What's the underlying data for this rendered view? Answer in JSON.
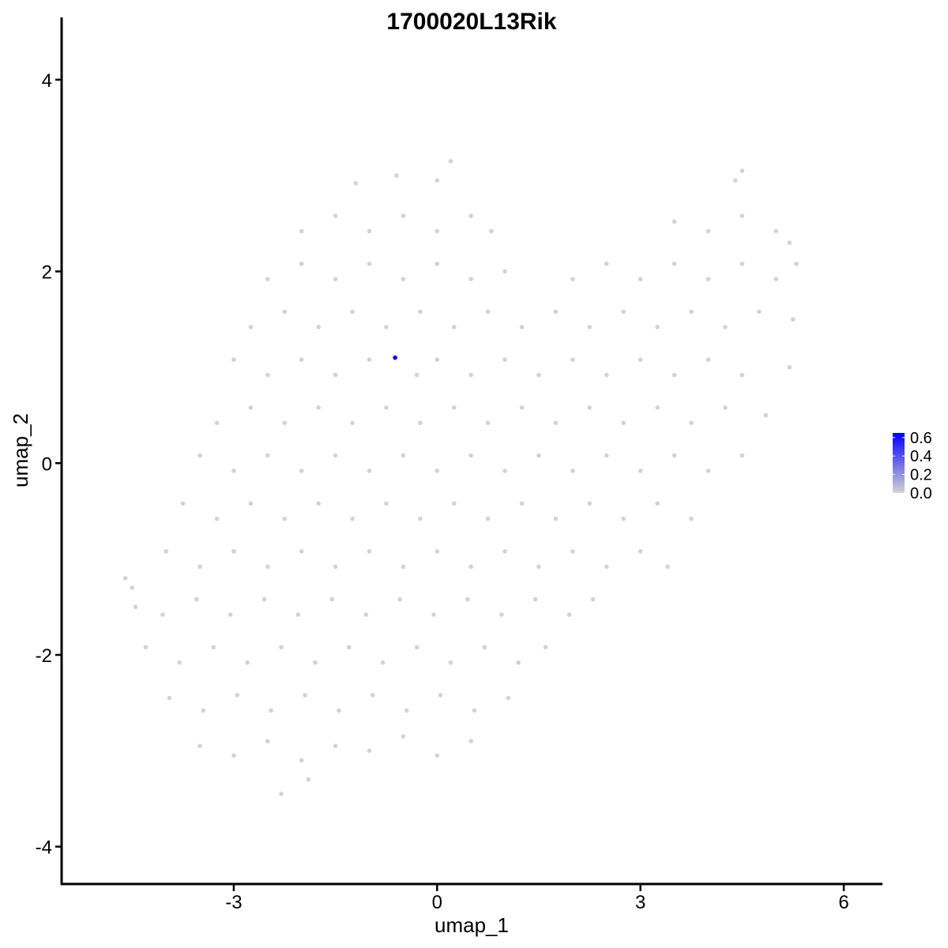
{
  "chart_data": {
    "type": "scatter",
    "title": "1700020L13Rik",
    "xlabel": "umap_1",
    "ylabel": "umap_2",
    "xlim": [
      -5.54,
      6.57
    ],
    "ylim": [
      -4.39,
      4.65
    ],
    "xticks": [
      -3,
      0,
      3,
      6
    ],
    "yticks": [
      -4,
      -2,
      0,
      2,
      4
    ],
    "xtick_labels": [
      "-3",
      "0",
      "3",
      "6"
    ],
    "ytick_labels": [
      "-4",
      "-2",
      "0",
      "2",
      "4"
    ],
    "grid": false,
    "colors": {
      "low": "#d3d3d3",
      "high": "#0000ff"
    },
    "legend": {
      "placement": "right",
      "type": "colorbar",
      "range": [
        0,
        0.65
      ],
      "tick_labels": [
        "0.0",
        "0.2",
        "0.4",
        "0.6"
      ],
      "ticks": [
        0,
        0.2,
        0.4,
        0.6
      ]
    },
    "expressing_points": [
      [
        -0.62,
        1.1,
        0.65
      ]
    ],
    "points": [
      [
        -4.6,
        -1.2
      ],
      [
        -4.5,
        -1.3
      ],
      [
        -4.45,
        -1.5
      ],
      [
        -2.3,
        -3.45
      ],
      [
        -1.9,
        -3.3
      ],
      [
        -3.5,
        -2.95
      ],
      [
        -3.0,
        -3.05
      ],
      [
        -2.5,
        -2.9
      ],
      [
        -2.0,
        -3.1
      ],
      [
        -1.5,
        -2.95
      ],
      [
        -1.0,
        -3.0
      ],
      [
        -0.5,
        -2.85
      ],
      [
        0,
        -3.05
      ],
      [
        0.5,
        -2.9
      ],
      [
        -3.95,
        -2.45
      ],
      [
        -3.45,
        -2.58
      ],
      [
        -2.95,
        -2.42
      ],
      [
        -2.45,
        -2.58
      ],
      [
        -1.95,
        -2.42
      ],
      [
        -1.45,
        -2.58
      ],
      [
        -0.95,
        -2.42
      ],
      [
        -0.45,
        -2.58
      ],
      [
        0.05,
        -2.42
      ],
      [
        0.55,
        -2.58
      ],
      [
        1.05,
        -2.45
      ],
      [
        -4.3,
        -1.92
      ],
      [
        -3.8,
        -2.08
      ],
      [
        -3.3,
        -1.92
      ],
      [
        -2.8,
        -2.08
      ],
      [
        -2.3,
        -1.92
      ],
      [
        -1.8,
        -2.08
      ],
      [
        -1.3,
        -1.92
      ],
      [
        -0.8,
        -2.08
      ],
      [
        -0.3,
        -1.92
      ],
      [
        0.2,
        -2.08
      ],
      [
        0.7,
        -1.92
      ],
      [
        1.2,
        -2.08
      ],
      [
        1.6,
        -1.92
      ],
      [
        -4.05,
        -1.58
      ],
      [
        -3.55,
        -1.42
      ],
      [
        -3.05,
        -1.58
      ],
      [
        -2.55,
        -1.42
      ],
      [
        -2.05,
        -1.58
      ],
      [
        -1.55,
        -1.42
      ],
      [
        -1.05,
        -1.58
      ],
      [
        -0.55,
        -1.42
      ],
      [
        -0.05,
        -1.58
      ],
      [
        0.45,
        -1.42
      ],
      [
        0.95,
        -1.58
      ],
      [
        1.45,
        -1.42
      ],
      [
        1.95,
        -1.58
      ],
      [
        2.3,
        -1.42
      ],
      [
        -4.0,
        -0.92
      ],
      [
        -3.5,
        -1.08
      ],
      [
        -3.0,
        -0.92
      ],
      [
        -2.5,
        -1.08
      ],
      [
        -2.0,
        -0.92
      ],
      [
        -1.5,
        -1.08
      ],
      [
        -1.0,
        -0.92
      ],
      [
        -0.5,
        -1.08
      ],
      [
        0,
        -0.92
      ],
      [
        0.5,
        -1.08
      ],
      [
        1.0,
        -0.92
      ],
      [
        1.5,
        -1.08
      ],
      [
        2.0,
        -0.92
      ],
      [
        2.5,
        -1.08
      ],
      [
        3.0,
        -0.92
      ],
      [
        3.4,
        -1.08
      ],
      [
        -3.75,
        -0.42
      ],
      [
        -3.25,
        -0.58
      ],
      [
        -2.75,
        -0.42
      ],
      [
        -2.25,
        -0.58
      ],
      [
        -1.75,
        -0.42
      ],
      [
        -1.25,
        -0.58
      ],
      [
        -0.75,
        -0.42
      ],
      [
        -0.25,
        -0.58
      ],
      [
        0.25,
        -0.42
      ],
      [
        0.75,
        -0.58
      ],
      [
        1.25,
        -0.42
      ],
      [
        1.75,
        -0.58
      ],
      [
        2.25,
        -0.42
      ],
      [
        2.75,
        -0.58
      ],
      [
        3.25,
        -0.42
      ],
      [
        3.75,
        -0.58
      ],
      [
        -3.5,
        0.08
      ],
      [
        -3.0,
        -0.08
      ],
      [
        -2.5,
        0.08
      ],
      [
        -2.0,
        -0.08
      ],
      [
        -1.5,
        0.08
      ],
      [
        -1.0,
        -0.08
      ],
      [
        -0.5,
        0.08
      ],
      [
        0,
        -0.08
      ],
      [
        0.5,
        0.08
      ],
      [
        1.0,
        -0.08
      ],
      [
        1.5,
        0.08
      ],
      [
        2.0,
        -0.08
      ],
      [
        2.5,
        0.08
      ],
      [
        3.0,
        -0.08
      ],
      [
        3.5,
        0.08
      ],
      [
        4.0,
        -0.08
      ],
      [
        4.5,
        0.08
      ],
      [
        -3.25,
        0.42
      ],
      [
        -2.75,
        0.58
      ],
      [
        -2.25,
        0.42
      ],
      [
        -1.75,
        0.58
      ],
      [
        -1.25,
        0.42
      ],
      [
        -0.75,
        0.58
      ],
      [
        -0.25,
        0.42
      ],
      [
        0.25,
        0.58
      ],
      [
        0.75,
        0.42
      ],
      [
        1.25,
        0.58
      ],
      [
        1.75,
        0.42
      ],
      [
        2.25,
        0.58
      ],
      [
        2.75,
        0.42
      ],
      [
        3.25,
        0.58
      ],
      [
        3.75,
        0.42
      ],
      [
        4.25,
        0.58
      ],
      [
        4.85,
        0.5
      ],
      [
        -3.0,
        1.08
      ],
      [
        -2.5,
        0.92
      ],
      [
        -2.0,
        1.08
      ],
      [
        -1.5,
        0.92
      ],
      [
        -1.0,
        1.08
      ],
      [
        -0.3,
        0.92
      ],
      [
        0,
        1.08
      ],
      [
        0.5,
        0.92
      ],
      [
        1.0,
        1.08
      ],
      [
        1.5,
        0.92
      ],
      [
        2.0,
        1.08
      ],
      [
        2.5,
        0.92
      ],
      [
        3.0,
        1.08
      ],
      [
        3.5,
        0.92
      ],
      [
        4.0,
        1.08
      ],
      [
        4.5,
        0.92
      ],
      [
        5.2,
        1.0
      ],
      [
        -2.75,
        1.42
      ],
      [
        -2.25,
        1.58
      ],
      [
        -1.75,
        1.42
      ],
      [
        -1.25,
        1.58
      ],
      [
        -0.75,
        1.42
      ],
      [
        -0.25,
        1.58
      ],
      [
        0.25,
        1.42
      ],
      [
        0.75,
        1.58
      ],
      [
        1.25,
        1.42
      ],
      [
        1.75,
        1.58
      ],
      [
        2.25,
        1.42
      ],
      [
        2.75,
        1.58
      ],
      [
        3.25,
        1.42
      ],
      [
        3.75,
        1.58
      ],
      [
        4.25,
        1.42
      ],
      [
        4.75,
        1.58
      ],
      [
        5.25,
        1.5
      ],
      [
        -2.5,
        1.92
      ],
      [
        -2.0,
        2.08
      ],
      [
        -1.5,
        1.92
      ],
      [
        -1.0,
        2.08
      ],
      [
        -0.5,
        1.92
      ],
      [
        0,
        2.08
      ],
      [
        0.5,
        1.92
      ],
      [
        1.0,
        2.0
      ],
      [
        2.0,
        1.92
      ],
      [
        2.5,
        2.08
      ],
      [
        3.0,
        1.92
      ],
      [
        3.5,
        2.08
      ],
      [
        4.0,
        1.92
      ],
      [
        4.5,
        2.08
      ],
      [
        5.0,
        1.92
      ],
      [
        5.3,
        2.08
      ],
      [
        -2.0,
        2.42
      ],
      [
        -1.5,
        2.58
      ],
      [
        -1.0,
        2.42
      ],
      [
        -0.5,
        2.58
      ],
      [
        0,
        2.42
      ],
      [
        0.5,
        2.58
      ],
      [
        0.8,
        2.42
      ],
      [
        3.5,
        2.52
      ],
      [
        4.0,
        2.42
      ],
      [
        4.5,
        2.58
      ],
      [
        5.0,
        2.42
      ],
      [
        5.2,
        2.3
      ],
      [
        -1.2,
        2.92
      ],
      [
        -0.6,
        3.0
      ],
      [
        0,
        2.95
      ],
      [
        0.2,
        3.15
      ],
      [
        4.4,
        2.95
      ],
      [
        4.5,
        3.05
      ]
    ]
  }
}
